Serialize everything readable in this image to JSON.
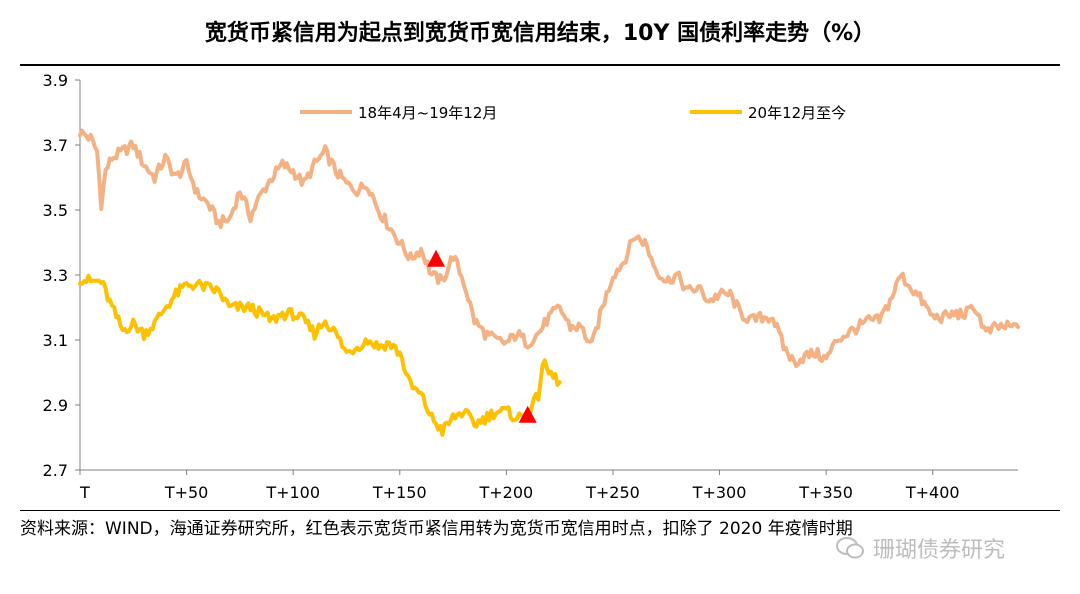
{
  "title": "宽货币紧信用为起点到宽货币宽信用结束，10Y 国债利率走势（%）",
  "footnote": "资料来源：WIND，海通证券研究所，红色表示宽货币紧信用转为宽货币宽信用时点，扣除了 2020 年疫情时期",
  "watermark": "珊瑚债券研究",
  "chart_data": {
    "type": "line",
    "title": "宽货币紧信用为起点到宽货币宽信用结束，10Y 国债利率走势（%）",
    "xlabel": "",
    "ylabel": "",
    "xlim": [
      0,
      440
    ],
    "ylim": [
      2.7,
      3.9
    ],
    "y_ticks": [
      "3.9",
      "3.7",
      "3.5",
      "3.3",
      "3.1",
      "2.9",
      "2.7"
    ],
    "y_tick_values": [
      3.9,
      3.7,
      3.5,
      3.3,
      3.1,
      2.9,
      2.7
    ],
    "x_ticks": [
      "T",
      "T+50",
      "T+100",
      "T+150",
      "T+200",
      "T+250",
      "T+300",
      "T+350",
      "T+400"
    ],
    "x_tick_values": [
      0,
      50,
      100,
      150,
      200,
      250,
      300,
      350,
      400
    ],
    "grid": false,
    "legend_position": "top",
    "series": [
      {
        "name": "18年4月~19年12月",
        "color": "#f4b183",
        "x": [
          0,
          5,
          8,
          10,
          12,
          15,
          20,
          25,
          30,
          35,
          40,
          45,
          50,
          55,
          60,
          65,
          70,
          75,
          80,
          85,
          90,
          95,
          100,
          105,
          110,
          115,
          120,
          125,
          130,
          135,
          140,
          145,
          150,
          155,
          160,
          165,
          170,
          175,
          180,
          185,
          190,
          195,
          200,
          205,
          210,
          215,
          220,
          225,
          230,
          235,
          240,
          245,
          250,
          255,
          260,
          265,
          270,
          275,
          280,
          285,
          290,
          295,
          300,
          305,
          310,
          315,
          320,
          325,
          330,
          335,
          340,
          345,
          350,
          355,
          360,
          365,
          370,
          375,
          380,
          385,
          390,
          395,
          400,
          405,
          410,
          415,
          420,
          425,
          430,
          435,
          440
        ],
        "values": [
          3.74,
          3.72,
          3.68,
          3.52,
          3.62,
          3.66,
          3.68,
          3.7,
          3.64,
          3.6,
          3.66,
          3.6,
          3.64,
          3.55,
          3.52,
          3.46,
          3.47,
          3.56,
          3.48,
          3.55,
          3.6,
          3.64,
          3.62,
          3.58,
          3.64,
          3.68,
          3.62,
          3.58,
          3.56,
          3.58,
          3.5,
          3.45,
          3.4,
          3.35,
          3.38,
          3.3,
          3.28,
          3.36,
          3.28,
          3.16,
          3.12,
          3.1,
          3.09,
          3.12,
          3.09,
          3.12,
          3.17,
          3.2,
          3.14,
          3.14,
          3.08,
          3.2,
          3.3,
          3.34,
          3.42,
          3.4,
          3.32,
          3.28,
          3.3,
          3.25,
          3.26,
          3.22,
          3.24,
          3.24,
          3.18,
          3.16,
          3.17,
          3.17,
          3.08,
          3.03,
          3.05,
          3.06,
          3.04,
          3.1,
          3.12,
          3.14,
          3.16,
          3.16,
          3.22,
          3.3,
          3.26,
          3.22,
          3.17,
          3.17,
          3.18,
          3.18,
          3.2,
          3.12,
          3.14,
          3.14,
          3.14
        ],
        "marker": {
          "x": 167,
          "y": 3.35,
          "color": "#ff0000",
          "shape": "triangle"
        }
      },
      {
        "name": "20年12月至今",
        "color": "#ffc000",
        "x": [
          0,
          5,
          10,
          15,
          20,
          25,
          30,
          35,
          40,
          45,
          50,
          55,
          60,
          65,
          70,
          75,
          80,
          85,
          90,
          95,
          100,
          105,
          110,
          115,
          120,
          125,
          130,
          135,
          140,
          145,
          150,
          155,
          160,
          165,
          170,
          175,
          180,
          185,
          190,
          195,
          200,
          205,
          210,
          215,
          217,
          220,
          225
        ],
        "values": [
          3.29,
          3.28,
          3.28,
          3.2,
          3.13,
          3.15,
          3.12,
          3.15,
          3.2,
          3.24,
          3.27,
          3.27,
          3.26,
          3.25,
          3.2,
          3.2,
          3.2,
          3.18,
          3.16,
          3.18,
          3.18,
          3.16,
          3.12,
          3.16,
          3.12,
          3.06,
          3.08,
          3.1,
          3.08,
          3.09,
          3.06,
          2.96,
          2.93,
          2.86,
          2.82,
          2.86,
          2.88,
          2.84,
          2.86,
          2.88,
          2.88,
          2.86,
          2.87,
          2.93,
          3.03,
          3.0,
          2.97
        ],
        "marker": {
          "x": 210,
          "y": 2.87,
          "color": "#ff0000",
          "shape": "triangle"
        }
      }
    ]
  }
}
